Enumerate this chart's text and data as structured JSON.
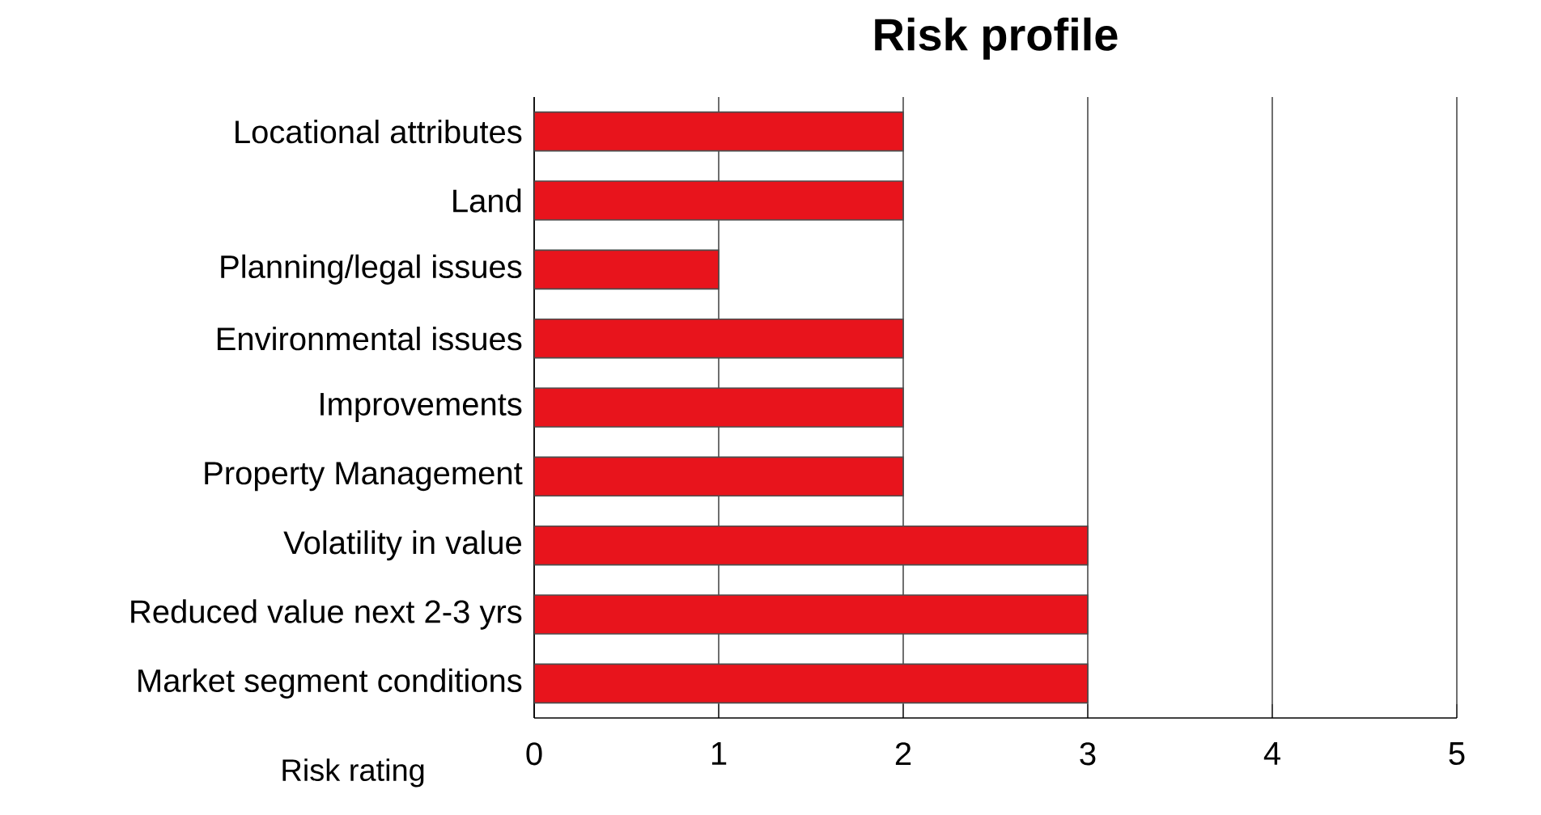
{
  "chart_data": {
    "type": "bar",
    "orientation": "horizontal",
    "title": "Risk profile",
    "xlabel": "Risk rating",
    "categories": [
      "Locational attributes",
      "Land",
      "Planning/legal issues",
      "Environmental issues",
      "Improvements",
      "Property Management",
      "Volatility in value",
      "Reduced value next 2-3 yrs",
      "Market segment conditions"
    ],
    "values": [
      2,
      2,
      1,
      2,
      2,
      2,
      3,
      3,
      3
    ],
    "color": "#e8141c",
    "xlim": [
      0,
      5
    ],
    "xticks": [
      0,
      1,
      2,
      3,
      4,
      5
    ],
    "grid": "x"
  }
}
